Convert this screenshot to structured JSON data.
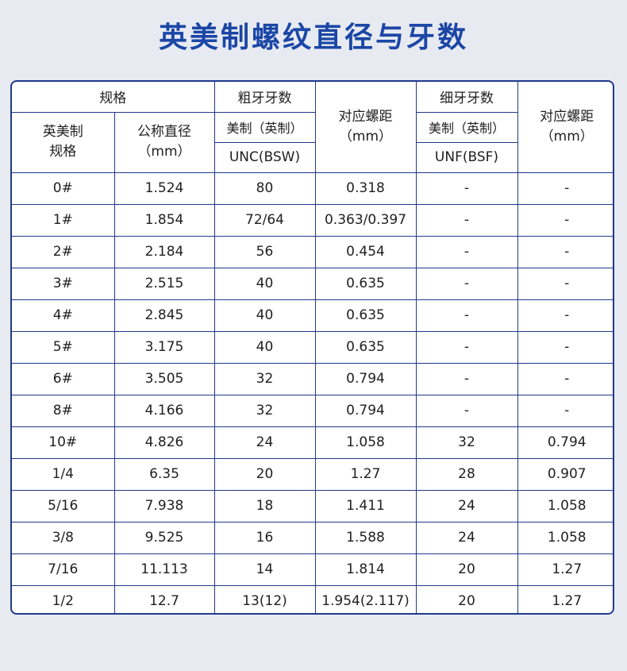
{
  "title": "英美制螺纹直径与牙数",
  "headers": {
    "spec": "规格",
    "coarse": "粗牙牙数",
    "pitch_coarse": [
      "对应螺距",
      "（mm）"
    ],
    "fine": "细牙牙数",
    "pitch_fine": [
      "对应螺距",
      "（mm）"
    ],
    "size": [
      "英美制",
      "规格"
    ],
    "diameter": [
      "公称直径",
      "（mm）"
    ],
    "coarse_system": "美制（英制）",
    "fine_system": "美制（英制）",
    "coarse_std": "UNC(BSW)",
    "fine_std": "UNF(BSF)"
  },
  "rows": [
    [
      "0#",
      "1.524",
      "80",
      "0.318",
      "-",
      "-"
    ],
    [
      "1#",
      "1.854",
      "72/64",
      "0.363/0.397",
      "-",
      "-"
    ],
    [
      "2#",
      "2.184",
      "56",
      "0.454",
      "-",
      "-"
    ],
    [
      "3#",
      "2.515",
      "40",
      "0.635",
      "-",
      "-"
    ],
    [
      "4#",
      "2.845",
      "40",
      "0.635",
      "-",
      "-"
    ],
    [
      "5#",
      "3.175",
      "40",
      "0.635",
      "-",
      "-"
    ],
    [
      "6#",
      "3.505",
      "32",
      "0.794",
      "-",
      "-"
    ],
    [
      "8#",
      "4.166",
      "32",
      "0.794",
      "-",
      "-"
    ],
    [
      "10#",
      "4.826",
      "24",
      "1.058",
      "32",
      "0.794"
    ],
    [
      "1/4",
      "6.35",
      "20",
      "1.27",
      "28",
      "0.907"
    ],
    [
      "5/16",
      "7.938",
      "18",
      "1.411",
      "24",
      "1.058"
    ],
    [
      "3/8",
      "9.525",
      "16",
      "1.588",
      "24",
      "1.058"
    ],
    [
      "7/16",
      "11.113",
      "14",
      "1.814",
      "20",
      "1.27"
    ],
    [
      "1/2",
      "12.7",
      "13(12)",
      "1.954(2.117)",
      "20",
      "1.27"
    ]
  ]
}
